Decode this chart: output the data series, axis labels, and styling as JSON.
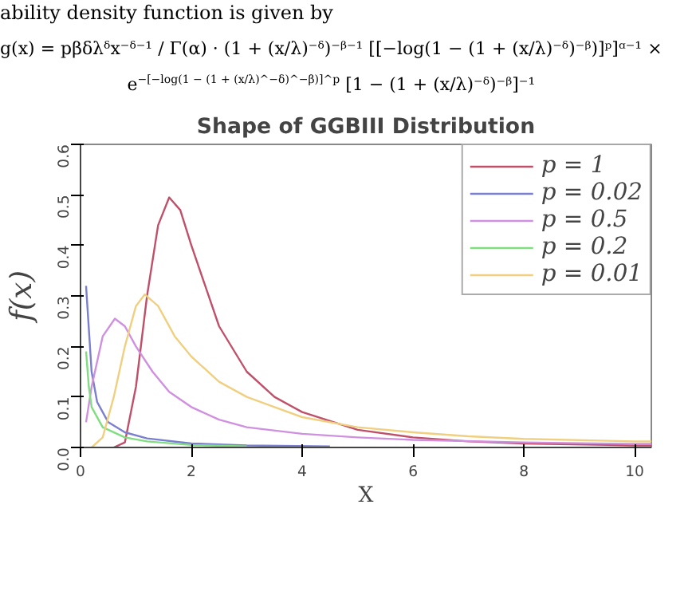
{
  "chart_data": {
    "type": "line",
    "title": "Shape of GGBIII Distribution",
    "xlabel": "X",
    "ylabel": "f(x)",
    "annotations": [
      "ability density function is given by",
      "g(x) = pβδλᵟx⁻ᵟ⁻¹ / Γ(α) · (1 + (x/λ)⁻ᵟ)⁻ᵝ⁻¹ [[−log(1 − (1 + (x/λ)⁻ᵟ)⁻ᵝ)]ᵖ]ᵅ⁻¹ ×",
      "e$^{−[−log(1 − (1 + (x/λ)^−δ)^−β)]^p}$ [1 − (1 + (x/λ)⁻ᵟ)⁻ᵝ]⁻¹"
    ],
    "xlim": [
      0,
      10.3
    ],
    "ylim": [
      0,
      0.6
    ],
    "xticks": [
      0,
      2,
      4,
      6,
      8,
      10
    ],
    "yticks": [
      {
        "value": 0,
        "label": "0.0"
      },
      {
        "value": 0.1,
        "label": "0.1"
      },
      {
        "value": 0.2,
        "label": "0.2"
      },
      {
        "value": 0.3,
        "label": "0.3"
      },
      {
        "value": 0.4,
        "label": "0.4"
      },
      {
        "value": 0.5,
        "label": "0.5"
      },
      {
        "value": 0.6,
        "label": "0.6"
      }
    ],
    "grid": false,
    "legend": "top right",
    "marker": "none",
    "line_style": "solid",
    "series": [
      {
        "name": "p = 1",
        "color": "#c0506a",
        "x": [
          0.6,
          0.8,
          1.0,
          1.2,
          1.4,
          1.6,
          1.8,
          2.0,
          2.5,
          3,
          3.5,
          4,
          5,
          6,
          7,
          8,
          10,
          10.3
        ],
        "values": [
          0.0,
          0.01,
          0.12,
          0.3,
          0.44,
          0.495,
          0.47,
          0.4,
          0.24,
          0.15,
          0.1,
          0.07,
          0.035,
          0.02,
          0.012,
          0.008,
          0.004,
          0.004
        ]
      },
      {
        "name": "p = 0.02",
        "color": "#7a7fd0",
        "x": [
          0.1,
          0.2,
          0.3,
          0.5,
          0.8,
          1.2,
          2,
          3,
          4.5
        ],
        "values": [
          0.32,
          0.15,
          0.09,
          0.05,
          0.03,
          0.018,
          0.008,
          0.004,
          0.002
        ]
      },
      {
        "name": "p = 0.5",
        "color": "#d090e0",
        "x": [
          0.1,
          0.2,
          0.4,
          0.62,
          0.8,
          1.0,
          1.3,
          1.6,
          2,
          2.5,
          3,
          4,
          5,
          6,
          8,
          10,
          10.3
        ],
        "values": [
          0.05,
          0.12,
          0.22,
          0.255,
          0.24,
          0.2,
          0.15,
          0.11,
          0.08,
          0.055,
          0.04,
          0.027,
          0.02,
          0.015,
          0.01,
          0.007,
          0.007
        ]
      },
      {
        "name": "p = 0.2",
        "color": "#80dd80",
        "x": [
          0.1,
          0.15,
          0.2,
          0.4,
          0.8,
          1.2,
          2,
          3
        ],
        "values": [
          0.19,
          0.12,
          0.08,
          0.04,
          0.02,
          0.012,
          0.005,
          0.002
        ]
      },
      {
        "name": "p = 0.01",
        "color": "#f0d080",
        "x": [
          0.2,
          0.4,
          0.6,
          0.8,
          1.0,
          1.16,
          1.4,
          1.7,
          2,
          2.5,
          3,
          3.5,
          4,
          5,
          6,
          7,
          8,
          10,
          10.3
        ],
        "values": [
          0.0,
          0.02,
          0.1,
          0.2,
          0.28,
          0.303,
          0.28,
          0.22,
          0.18,
          0.13,
          0.1,
          0.08,
          0.06,
          0.04,
          0.03,
          0.022,
          0.017,
          0.012,
          0.012
        ]
      }
    ]
  }
}
